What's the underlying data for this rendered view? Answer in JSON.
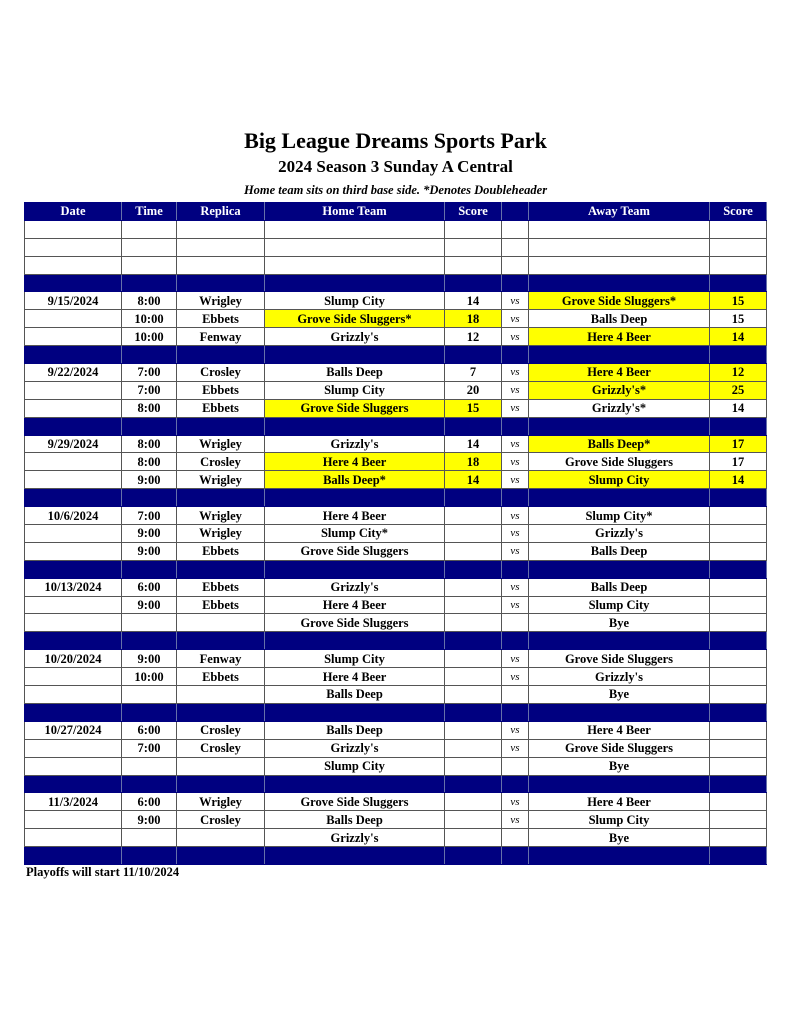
{
  "header": {
    "title": "Big League Dreams Sports Park",
    "subtitle": "2024 Season 3 Sunday A Central",
    "note": "Home team sits on third base side.  *Denotes Doubleheader"
  },
  "columns": [
    "Date",
    "Time",
    "Replica",
    "Home Team",
    "Score",
    "",
    "Away Team",
    "Score"
  ],
  "vs_label": "vs",
  "colors": {
    "band": "#000080",
    "highlight": "#ffff00"
  },
  "weeks": [
    {
      "date": "9/15/2024",
      "games": [
        {
          "time": "8:00",
          "replica": "Wrigley",
          "home": "Slump City",
          "home_score": "14",
          "away": "Grove Side Sluggers*",
          "away_score": "15",
          "winner": "away"
        },
        {
          "time": "10:00",
          "replica": "Ebbets",
          "home": "Grove Side Sluggers*",
          "home_score": "18",
          "away": "Balls Deep",
          "away_score": "15",
          "winner": "home"
        },
        {
          "time": "10:00",
          "replica": "Fenway",
          "home": "Grizzly's",
          "home_score": "12",
          "away": "Here 4 Beer",
          "away_score": "14",
          "winner": "away"
        }
      ]
    },
    {
      "date": "9/22/2024",
      "games": [
        {
          "time": "7:00",
          "replica": "Crosley",
          "home": "Balls Deep",
          "home_score": "7",
          "away": "Here 4 Beer",
          "away_score": "12",
          "winner": "away"
        },
        {
          "time": "7:00",
          "replica": "Ebbets",
          "home": "Slump City",
          "home_score": "20",
          "away": "Grizzly's*",
          "away_score": "25",
          "winner": "away"
        },
        {
          "time": "8:00",
          "replica": "Ebbets",
          "home": "Grove Side Sluggers",
          "home_score": "15",
          "away": "Grizzly's*",
          "away_score": "14",
          "winner": "home"
        }
      ]
    },
    {
      "date": "9/29/2024",
      "games": [
        {
          "time": "8:00",
          "replica": "Wrigley",
          "home": "Grizzly's",
          "home_score": "14",
          "away": "Balls Deep*",
          "away_score": "17",
          "winner": "away"
        },
        {
          "time": "8:00",
          "replica": "Crosley",
          "home": "Here 4 Beer",
          "home_score": "18",
          "away": "Grove Side Sluggers",
          "away_score": "17",
          "winner": "home"
        },
        {
          "time": "9:00",
          "replica": "Wrigley",
          "home": "Balls Deep*",
          "home_score": "14",
          "away": "Slump City",
          "away_score": "14",
          "winner": "tie"
        }
      ]
    },
    {
      "date": "10/6/2024",
      "games": [
        {
          "time": "7:00",
          "replica": "Wrigley",
          "home": "Here 4 Beer",
          "home_score": "",
          "away": "Slump City*",
          "away_score": "",
          "winner": ""
        },
        {
          "time": "9:00",
          "replica": "Wrigley",
          "home": "Slump City*",
          "home_score": "",
          "away": "Grizzly's",
          "away_score": "",
          "winner": ""
        },
        {
          "time": "9:00",
          "replica": "Ebbets",
          "home": "Grove Side Sluggers",
          "home_score": "",
          "away": "Balls Deep",
          "away_score": "",
          "winner": ""
        }
      ]
    },
    {
      "date": "10/13/2024",
      "games": [
        {
          "time": "6:00",
          "replica": "Ebbets",
          "home": "Grizzly's",
          "home_score": "",
          "away": "Balls Deep",
          "away_score": "",
          "winner": ""
        },
        {
          "time": "9:00",
          "replica": "Ebbets",
          "home": "Here 4 Beer",
          "home_score": "",
          "away": "Slump City",
          "away_score": "",
          "winner": ""
        },
        {
          "time": "",
          "replica": "",
          "home": "Grove Side Sluggers",
          "home_score": "",
          "away": "Bye",
          "away_score": "",
          "winner": "",
          "bye": true
        }
      ]
    },
    {
      "date": "10/20/2024",
      "games": [
        {
          "time": "9:00",
          "replica": "Fenway",
          "home": "Slump City",
          "home_score": "",
          "away": "Grove Side Sluggers",
          "away_score": "",
          "winner": ""
        },
        {
          "time": "10:00",
          "replica": "Ebbets",
          "home": "Here 4 Beer",
          "home_score": "",
          "away": "Grizzly's",
          "away_score": "",
          "winner": ""
        },
        {
          "time": "",
          "replica": "",
          "home": "Balls Deep",
          "home_score": "",
          "away": "Bye",
          "away_score": "",
          "winner": "",
          "bye": true
        }
      ]
    },
    {
      "date": "10/27/2024",
      "games": [
        {
          "time": "6:00",
          "replica": "Crosley",
          "home": "Balls Deep",
          "home_score": "",
          "away": "Here 4 Beer",
          "away_score": "",
          "winner": ""
        },
        {
          "time": "7:00",
          "replica": "Crosley",
          "home": "Grizzly's",
          "home_score": "",
          "away": "Grove Side Sluggers",
          "away_score": "",
          "winner": ""
        },
        {
          "time": "",
          "replica": "",
          "home": "Slump City",
          "home_score": "",
          "away": "Bye",
          "away_score": "",
          "winner": "",
          "bye": true
        }
      ]
    },
    {
      "date": "11/3/2024",
      "games": [
        {
          "time": "6:00",
          "replica": "Wrigley",
          "home": "Grove Side Sluggers",
          "home_score": "",
          "away": "Here 4 Beer",
          "away_score": "",
          "winner": ""
        },
        {
          "time": "9:00",
          "replica": "Crosley",
          "home": "Balls Deep",
          "home_score": "",
          "away": "Slump City",
          "away_score": "",
          "winner": ""
        },
        {
          "time": "",
          "replica": "",
          "home": "Grizzly's",
          "home_score": "",
          "away": "Bye",
          "away_score": "",
          "winner": "",
          "bye": true
        }
      ]
    }
  ],
  "footer": "Playoffs will start 11/10/2024"
}
